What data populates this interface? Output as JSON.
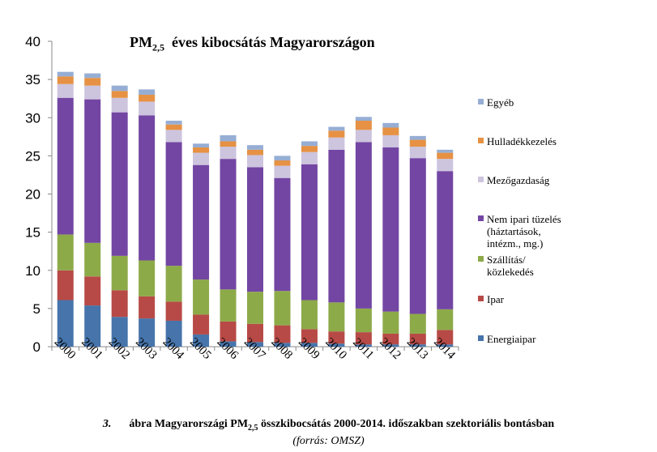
{
  "caption": {
    "number": "3.",
    "text_before": "ábra Magyarországi PM",
    "subscript": "2,5",
    "text_after": " összkibocsátás 2000-2014. időszakban szektoriális bontásban",
    "source": "(forrás: OMSZ)"
  },
  "chart_data": {
    "type": "bar",
    "stacked": true,
    "title": "PM2,5 éves kibocsátás Magyarországon",
    "title_parts": {
      "main": "PM",
      "sub": "2,5",
      "rest": "éves kibocsátás Magyarországon"
    },
    "categories": [
      "2000",
      "2001",
      "2002",
      "2003",
      "2004",
      "2005",
      "2006",
      "2007",
      "2008",
      "2009",
      "2010",
      "2011",
      "2012",
      "2013",
      "2014"
    ],
    "ylim": [
      0,
      40
    ],
    "yticks": [
      0,
      5,
      10,
      15,
      20,
      25,
      30,
      35,
      40
    ],
    "grid": false,
    "legend_position": "right",
    "series": [
      {
        "name": "Energiaipar",
        "color": "#4674AB",
        "values": [
          6.1,
          5.4,
          3.9,
          3.7,
          3.4,
          1.6,
          0.7,
          0.6,
          0.5,
          0.5,
          0.4,
          0.3,
          0.3,
          0.3,
          0.3
        ]
      },
      {
        "name": "Ipar",
        "color": "#B74A46",
        "values": [
          3.9,
          3.8,
          3.5,
          2.9,
          2.5,
          2.6,
          2.6,
          2.4,
          2.3,
          1.8,
          1.6,
          1.6,
          1.4,
          1.4,
          1.9
        ]
      },
      {
        "name": "Szállítás/ közlekedés",
        "legend_lines": [
          "Szállítás/",
          "közlekedés"
        ],
        "color": "#8DAA49",
        "values": [
          4.7,
          4.4,
          4.5,
          4.7,
          4.7,
          4.6,
          4.2,
          4.2,
          4.5,
          3.8,
          3.8,
          3.1,
          2.9,
          2.6,
          2.7
        ]
      },
      {
        "name": "Nem ipari tüzelés (háztartások, intézm., mg.)",
        "legend_lines": [
          "Nem ipari tüzelés",
          "(háztartások,",
          "intézm., mg.)"
        ],
        "color": "#7346A3",
        "values": [
          17.9,
          18.8,
          18.8,
          19.0,
          16.2,
          15.0,
          17.1,
          16.3,
          14.8,
          17.8,
          20.0,
          21.8,
          21.5,
          20.4,
          18.1
        ]
      },
      {
        "name": "Mezőgazdaság",
        "color": "#CDC4DE",
        "values": [
          1.8,
          1.8,
          1.9,
          1.8,
          1.6,
          1.6,
          1.6,
          1.6,
          1.6,
          1.6,
          1.6,
          1.6,
          1.6,
          1.5,
          1.6
        ]
      },
      {
        "name": "Hulladékkezelés",
        "color": "#E69143",
        "values": [
          1.0,
          1.0,
          0.9,
          0.9,
          0.7,
          0.7,
          0.7,
          0.7,
          0.7,
          0.8,
          0.9,
          1.2,
          1.0,
          0.9,
          0.8
        ]
      },
      {
        "name": "Egyéb",
        "color": "#96AED4",
        "values": [
          0.6,
          0.6,
          0.7,
          0.7,
          0.5,
          0.5,
          0.8,
          0.6,
          0.6,
          0.6,
          0.5,
          0.5,
          0.6,
          0.5,
          0.4
        ]
      }
    ]
  }
}
